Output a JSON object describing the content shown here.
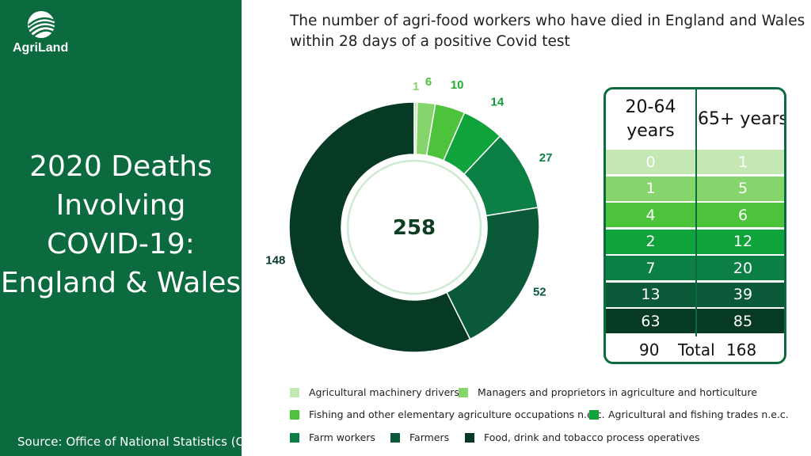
{
  "brand": {
    "logo_text": "AgriLand"
  },
  "sidebar": {
    "title_lines": [
      "2020 Deaths",
      "Involving",
      "COVID-19:",
      "England & Wales"
    ],
    "source": "Source: Office of National Statistics (ONS)",
    "background": "#0b6b3e"
  },
  "chart_data": {
    "type": "pie",
    "title_lines": [
      "The number of agri-food workers who have died in England and Wales",
      "within 28 days of a positive Covid test"
    ],
    "center_total": "258",
    "categories": [
      "Agricultural machinery drivers",
      "Managers and proprietors in agriculture and horticulture",
      "Fishing and other elementary agriculture occupations n.e.c.",
      "Agricultural and fishing trades n.e.c.",
      "Farm workers",
      "Farmers",
      "Food, drink and tobacco process operatives"
    ],
    "values": [
      1,
      6,
      10,
      14,
      27,
      52,
      148
    ],
    "colors": [
      "#c4e8b3",
      "#86d56c",
      "#4cc33a",
      "#0fa33b",
      "#0c7f45",
      "#0a5a3a",
      "#063a24"
    ],
    "label_colors": [
      "#86d56c",
      "#4cc33a",
      "#1fae2f",
      "#0f9a3a",
      "#0c7f45",
      "#0a5a3a",
      "#063a24"
    ],
    "legend_placement": "bottom"
  },
  "age_table": {
    "headers": [
      "20-64 years",
      "65+ years"
    ],
    "rows": [
      {
        "a": "0",
        "b": "1",
        "bg": "#c4e8b3",
        "fg": "#ffffff"
      },
      {
        "a": "1",
        "b": "5",
        "bg": "#86d56c",
        "fg": "#ffffff"
      },
      {
        "a": "4",
        "b": "6",
        "bg": "#4cc33a",
        "fg": "#ffffff"
      },
      {
        "a": "2",
        "b": "12",
        "bg": "#0fa33b",
        "fg": "#ffffff"
      },
      {
        "a": "7",
        "b": "20",
        "bg": "#0c7f45",
        "fg": "#ffffff"
      },
      {
        "a": "13",
        "b": "39",
        "bg": "#0a5a3a",
        "fg": "#ffffff"
      },
      {
        "a": "63",
        "b": "85",
        "bg": "#063a24",
        "fg": "#ffffff"
      }
    ],
    "total_a": "90",
    "total_label": "Total",
    "total_b": "168"
  }
}
